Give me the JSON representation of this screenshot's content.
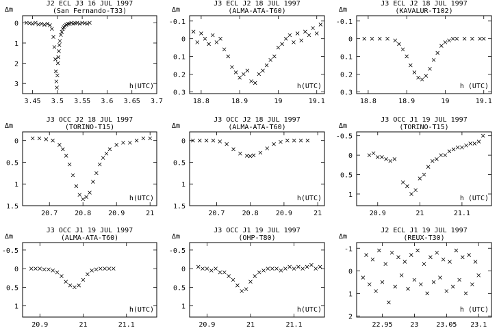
{
  "chart_data": [
    {
      "type": "scatter",
      "title": "J2 ECL J3 16 JUL 1997",
      "subtitle": "(San Fernando-T33)",
      "ylabel": "Δm",
      "xlabel": "h(UTC)",
      "xlim": [
        3.43,
        3.7
      ],
      "ylim": [
        3.5,
        -0.35
      ],
      "xticks": [
        3.45,
        3.5,
        3.55,
        3.6,
        3.65,
        3.7
      ],
      "xticklabels": [
        "3.45",
        "3.5",
        "3.55",
        "3.6",
        "3.65",
        "3.7"
      ],
      "yticks": [
        0,
        1,
        2,
        3
      ],
      "yticklabels": [
        "0",
        "1",
        "2",
        "3"
      ],
      "x": [
        3.438,
        3.444,
        3.45,
        3.456,
        3.462,
        3.468,
        3.474,
        3.48,
        3.485,
        3.489,
        3.492,
        3.494,
        3.496,
        3.497,
        3.498,
        3.499,
        3.5,
        3.501,
        3.502,
        3.503,
        3.504,
        3.505,
        3.507,
        3.509,
        3.511,
        3.513,
        3.515,
        3.518,
        3.521,
        3.524,
        3.528,
        3.532,
        3.536,
        3.54,
        3.545,
        3.55,
        3.555,
        3.56,
        3.565
      ],
      "y": [
        0.0,
        0.02,
        0.05,
        0.0,
        0.08,
        0.05,
        0.1,
        0.05,
        0.12,
        0.3,
        0.7,
        1.2,
        1.8,
        2.4,
        2.9,
        3.2,
        2.6,
        2.0,
        1.7,
        1.4,
        1.1,
        0.9,
        0.6,
        0.45,
        0.3,
        0.22,
        0.15,
        0.1,
        0.05,
        0.05,
        0.0,
        0.05,
        0.02,
        0.0,
        0.05,
        0.0,
        0.02,
        0.05,
        0.0
      ]
    },
    {
      "type": "scatter",
      "title": "J3 ECL J2 18 JUL 1997",
      "subtitle": "(ALMA-ATA-T60)",
      "ylabel": "Δm",
      "xlabel": "h(UTC)",
      "xlim": [
        18.77,
        19.12
      ],
      "ylim": [
        0.31,
        -0.13
      ],
      "xticks": [
        18.8,
        18.9,
        19,
        19.1
      ],
      "xticklabels": [
        "18.8",
        "18.9",
        "19",
        "19.1"
      ],
      "yticks": [
        -0.1,
        0,
        0.1,
        0.2,
        0.3
      ],
      "yticklabels": [
        "-0.1",
        "0",
        "0.1",
        "0.2",
        "0.3"
      ],
      "x": [
        18.78,
        18.79,
        18.8,
        18.81,
        18.82,
        18.83,
        18.84,
        18.85,
        18.86,
        18.87,
        18.88,
        18.89,
        18.9,
        18.91,
        18.92,
        18.93,
        18.94,
        18.95,
        18.96,
        18.97,
        18.98,
        18.99,
        19.0,
        19.01,
        19.02,
        19.03,
        19.04,
        19.05,
        19.06,
        19.07,
        19.08,
        19.09,
        19.1,
        19.11
      ],
      "y": [
        -0.04,
        0.02,
        -0.03,
        0.0,
        0.03,
        -0.02,
        0.02,
        0.0,
        0.06,
        0.1,
        0.16,
        0.19,
        0.22,
        0.2,
        0.18,
        0.24,
        0.25,
        0.2,
        0.18,
        0.15,
        0.12,
        0.1,
        0.05,
        0.03,
        0.0,
        -0.02,
        0.02,
        -0.03,
        0.01,
        -0.04,
        -0.02,
        -0.06,
        -0.03,
        -0.08
      ]
    },
    {
      "type": "scatter",
      "title": "J3 ECL J2 18 JUL 1997",
      "subtitle": "(KAVALUR-T102)",
      "ylabel": "Δm",
      "xlabel": "h (UTC)",
      "xlim": [
        18.77,
        19.12
      ],
      "ylim": [
        0.31,
        -0.13
      ],
      "xticks": [
        18.8,
        18.9,
        19,
        19.1
      ],
      "xticklabels": [
        "18.8",
        "18.9",
        "19",
        "19.1"
      ],
      "yticks": [
        -0.1,
        0,
        0.1,
        0.2,
        0.3
      ],
      "yticklabels": [
        "-0.1",
        "0",
        "0.1",
        "0.2",
        "0.3"
      ],
      "x": [
        18.79,
        18.81,
        18.83,
        18.85,
        18.87,
        18.88,
        18.89,
        18.9,
        18.91,
        18.92,
        18.93,
        18.94,
        18.95,
        18.96,
        18.97,
        18.98,
        18.99,
        19.0,
        19.01,
        19.02,
        19.03,
        19.05,
        19.07,
        19.09,
        19.1
      ],
      "y": [
        0.0,
        0.0,
        0.0,
        0.0,
        0.01,
        0.03,
        0.06,
        0.1,
        0.15,
        0.19,
        0.22,
        0.23,
        0.21,
        0.17,
        0.12,
        0.08,
        0.04,
        0.02,
        0.01,
        0.0,
        0.0,
        0.0,
        0.0,
        0.0,
        0.0
      ]
    },
    {
      "type": "scatter",
      "title": "J3 OCC J2 18 JUL 1997",
      "subtitle": "(TORINO-T15)",
      "ylabel": "Δm",
      "xlabel": "h(UTC)",
      "xlim": [
        20.62,
        21.02
      ],
      "ylim": [
        1.5,
        -0.2
      ],
      "xticks": [
        20.7,
        20.8,
        20.9,
        21
      ],
      "xticklabels": [
        "20.7",
        "20.8",
        "20.9",
        "21"
      ],
      "yticks": [
        0,
        0.5,
        1,
        1.5
      ],
      "yticklabels": [
        "0",
        "0.5",
        "1",
        "1.5"
      ],
      "x": [
        20.65,
        20.67,
        20.69,
        20.71,
        20.73,
        20.74,
        20.75,
        20.76,
        20.77,
        20.78,
        20.79,
        20.8,
        20.81,
        20.82,
        20.83,
        20.84,
        20.85,
        20.86,
        20.87,
        20.88,
        20.9,
        20.92,
        20.94,
        20.96,
        20.98,
        21.0
      ],
      "y": [
        -0.05,
        -0.05,
        -0.03,
        0.0,
        0.1,
        0.2,
        0.35,
        0.55,
        0.8,
        1.05,
        1.25,
        1.35,
        1.3,
        1.2,
        0.95,
        0.75,
        0.55,
        0.4,
        0.3,
        0.2,
        0.1,
        0.05,
        0.05,
        0.0,
        -0.05,
        -0.05
      ]
    },
    {
      "type": "scatter",
      "title": "J3 OCC J2 18 JUL 1997",
      "subtitle": "(ALMA-ATA-T60)",
      "ylabel": "Δm",
      "xlabel": "h(UTC)",
      "xlim": [
        20.62,
        21.02
      ],
      "ylim": [
        1.5,
        -0.2
      ],
      "xticks": [
        20.7,
        20.8,
        20.9,
        21
      ],
      "xticklabels": [
        "20.7",
        "20.8",
        "20.9",
        "21"
      ],
      "yticks": [
        0,
        0.5,
        1,
        1.5
      ],
      "yticklabels": [
        "0",
        "0.5",
        "1",
        "1.5"
      ],
      "x": [
        20.63,
        20.65,
        20.67,
        20.69,
        20.71,
        20.73,
        20.75,
        20.77,
        20.79,
        20.8,
        20.81,
        20.83,
        20.85,
        20.87,
        20.89,
        20.91,
        20.93,
        20.95,
        20.97
      ],
      "y": [
        0.0,
        0.0,
        0.0,
        0.0,
        0.02,
        0.08,
        0.2,
        0.3,
        0.35,
        0.36,
        0.34,
        0.28,
        0.18,
        0.08,
        0.03,
        0.0,
        0.0,
        0.0,
        0.0
      ]
    },
    {
      "type": "scatter",
      "title": "J3 OCC J1 19 JUL 1997",
      "subtitle": "(TORINO-T15)",
      "ylabel": "Δm",
      "xlabel": "h (UTC)",
      "xlim": [
        20.85,
        21.17
      ],
      "ylim": [
        1.3,
        -0.6
      ],
      "xticks": [
        20.9,
        21,
        21.1
      ],
      "xticklabels": [
        "20.9",
        "21",
        "21.1"
      ],
      "yticks": [
        -0.5,
        0,
        0.5,
        1
      ],
      "yticklabels": [
        "-0.5",
        "0",
        "0.5",
        "1"
      ],
      "x": [
        20.88,
        20.89,
        20.9,
        20.91,
        20.92,
        20.93,
        20.94,
        20.96,
        20.97,
        20.98,
        20.99,
        21.0,
        21.01,
        21.02,
        21.03,
        21.04,
        21.05,
        21.06,
        21.07,
        21.08,
        21.09,
        21.1,
        21.11,
        21.12,
        21.13,
        21.14,
        21.15
      ],
      "y": [
        0.0,
        -0.05,
        0.05,
        0.05,
        0.1,
        0.15,
        0.1,
        0.7,
        0.8,
        1.0,
        0.9,
        0.6,
        0.5,
        0.3,
        0.15,
        0.1,
        0.0,
        0.0,
        -0.1,
        -0.15,
        -0.2,
        -0.2,
        -0.25,
        -0.3,
        -0.3,
        -0.35,
        -0.5
      ]
    },
    {
      "type": "scatter",
      "title": "J3 OCC J1 19 JUL 1997",
      "subtitle": "(ALMA-ATA-T60)",
      "ylabel": "Δm",
      "xlabel": "h(UTC)",
      "xlim": [
        20.86,
        21.17
      ],
      "ylim": [
        1.3,
        -0.7
      ],
      "xticks": [
        20.9,
        21,
        21.1
      ],
      "xticklabels": [
        "20.9",
        "21",
        "21.1"
      ],
      "yticks": [
        -0.5,
        0,
        0.5,
        1
      ],
      "yticklabels": [
        "-0.5",
        "0",
        "0.5",
        "1"
      ],
      "x": [
        20.88,
        20.89,
        20.9,
        20.91,
        20.92,
        20.93,
        20.94,
        20.95,
        20.96,
        20.97,
        20.98,
        20.99,
        21.0,
        21.01,
        21.02,
        21.03,
        21.04,
        21.05,
        21.06,
        21.07
      ],
      "y": [
        0.0,
        0.0,
        0.0,
        0.02,
        0.02,
        0.05,
        0.1,
        0.2,
        0.35,
        0.45,
        0.5,
        0.45,
        0.3,
        0.15,
        0.05,
        0.02,
        0.0,
        0.0,
        0.0,
        0.0
      ]
    },
    {
      "type": "scatter",
      "title": "J3 OCC J1 19 JUL 1997",
      "subtitle": "(OHP-T80)",
      "ylabel": "Δm",
      "xlabel": "h(UTC)",
      "xlim": [
        20.86,
        21.17
      ],
      "ylim": [
        1.3,
        -0.7
      ],
      "xticks": [
        20.9,
        21,
        21.1
      ],
      "xticklabels": [
        "20.9",
        "21",
        "21.1"
      ],
      "yticks": [
        -0.5,
        0,
        0.5,
        1
      ],
      "yticklabels": [
        "-0.5",
        "0",
        "0.5",
        "1"
      ],
      "x": [
        20.88,
        20.89,
        20.9,
        20.91,
        20.92,
        20.93,
        20.94,
        20.95,
        20.96,
        20.97,
        20.98,
        20.99,
        21.0,
        21.01,
        21.02,
        21.03,
        21.04,
        21.05,
        21.06,
        21.07,
        21.08,
        21.09,
        21.1,
        21.11,
        21.12,
        21.13,
        21.14,
        21.15,
        21.16
      ],
      "y": [
        -0.05,
        0.0,
        0.0,
        0.05,
        0.0,
        0.1,
        0.1,
        0.2,
        0.3,
        0.45,
        0.6,
        0.55,
        0.35,
        0.2,
        0.1,
        0.05,
        0.0,
        0.0,
        0.0,
        0.05,
        0.0,
        -0.05,
        0.0,
        -0.05,
        0.0,
        -0.05,
        -0.1,
        0.0,
        -0.05
      ]
    },
    {
      "type": "scatter",
      "title": "J2 ECL J1 19 JUL 1997",
      "subtitle": "(REUX-T30)",
      "ylabel": "Δm",
      "xlabel": "h (UTC)",
      "xlim": [
        22.91,
        23.12
      ],
      "ylim": [
        2.05,
        -1.25
      ],
      "xticks": [
        22.95,
        23,
        23.05,
        23.1
      ],
      "xticklabels": [
        "22.95",
        "23",
        "23.05",
        "23.1"
      ],
      "yticks": [
        -1,
        0,
        1,
        2
      ],
      "yticklabels": [
        "-1",
        "0",
        "1",
        "2"
      ],
      "x": [
        22.92,
        22.925,
        22.93,
        22.935,
        22.94,
        22.945,
        22.95,
        22.955,
        22.96,
        22.965,
        22.97,
        22.975,
        22.98,
        22.985,
        22.99,
        22.995,
        23.0,
        23.005,
        23.01,
        23.015,
        23.02,
        23.025,
        23.03,
        23.035,
        23.04,
        23.045,
        23.05,
        23.055,
        23.06,
        23.065,
        23.07,
        23.075,
        23.08,
        23.085,
        23.09,
        23.095,
        23.1
      ],
      "y": [
        0.3,
        -0.7,
        0.6,
        -0.5,
        0.9,
        -0.9,
        0.5,
        -0.3,
        1.4,
        -0.8,
        0.7,
        -0.6,
        0.2,
        -0.4,
        0.8,
        -0.7,
        0.4,
        -0.9,
        0.6,
        -0.3,
        1.0,
        -0.6,
        0.5,
        -0.8,
        0.3,
        -0.5,
        0.9,
        -0.4,
        0.7,
        -0.9,
        0.4,
        -0.6,
        1.0,
        -0.7,
        0.6,
        -0.4,
        0.2
      ]
    }
  ]
}
